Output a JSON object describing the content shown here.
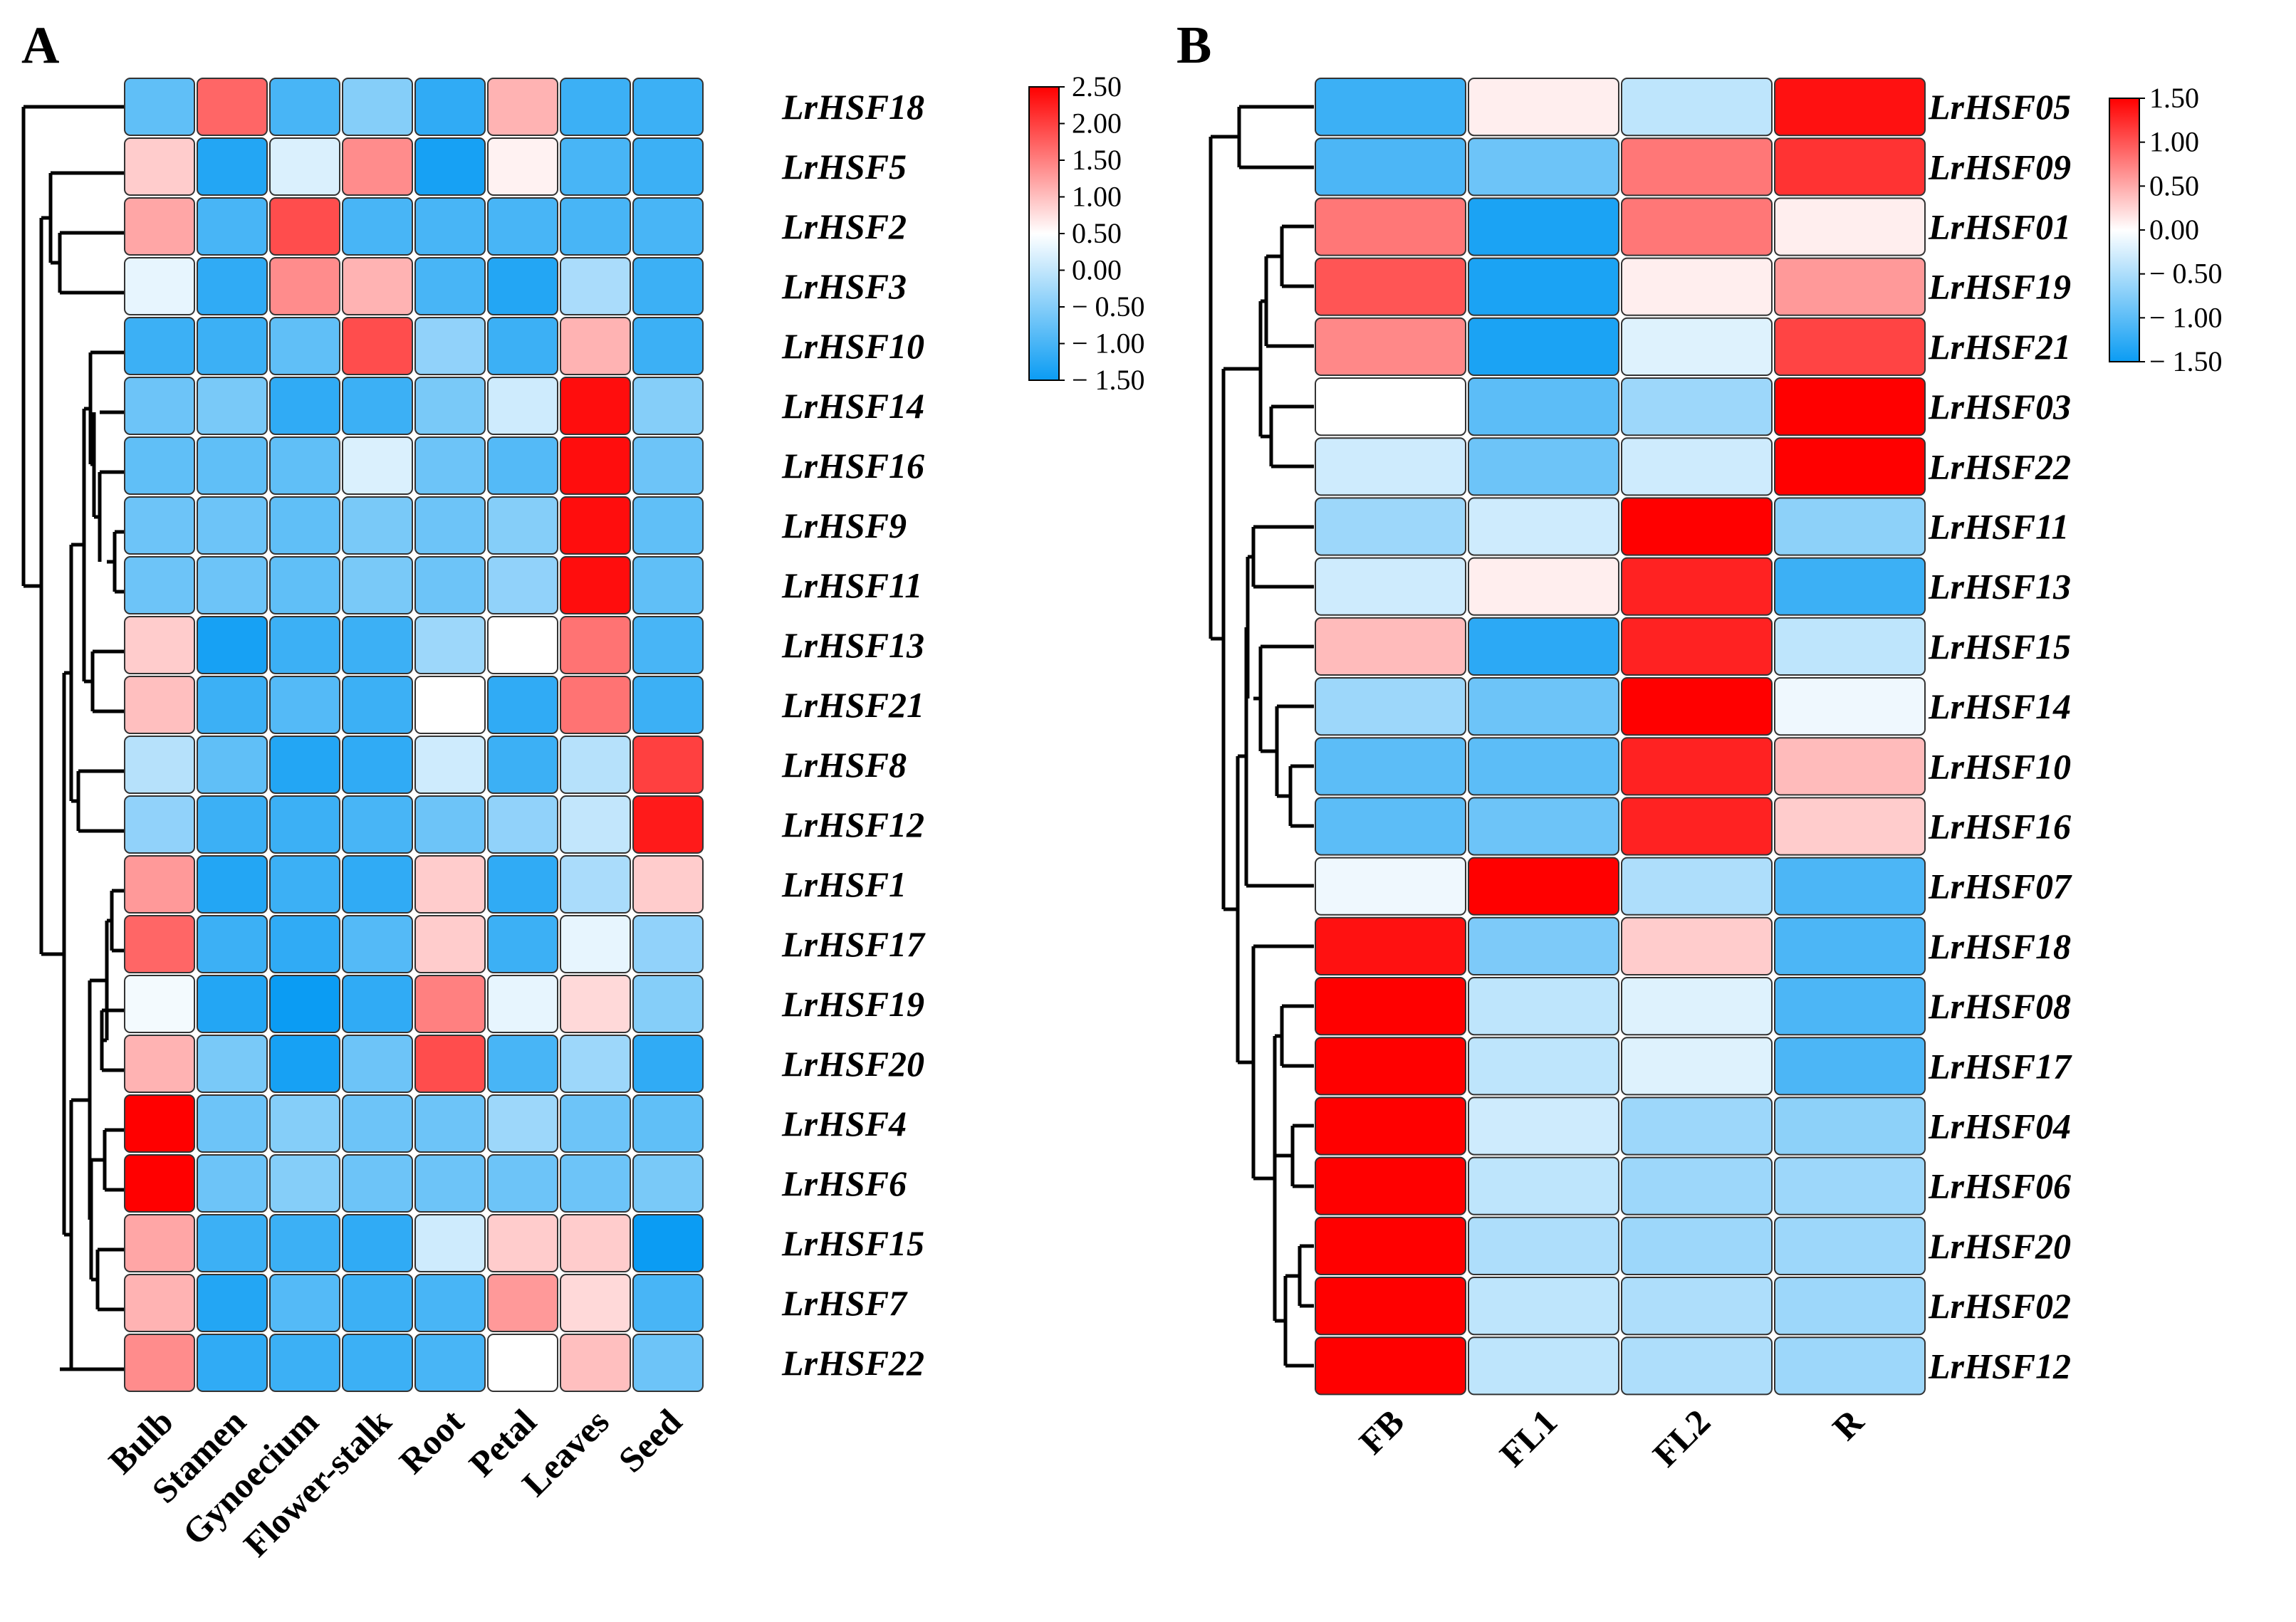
{
  "chart_data": [
    {
      "type": "heatmap",
      "panel": "A",
      "columns": [
        "Bulb",
        "Stamen",
        "Gynoecium",
        "Flower-stalk",
        "Root",
        "Petal",
        "Leaves",
        "Seed"
      ],
      "rows": [
        "LrHSF18",
        "LrHSF5",
        "LrHSF2",
        "LrHSF3",
        "LrHSF10",
        "LrHSF14",
        "LrHSF16",
        "LrHSF9",
        "LrHSF11",
        "LrHSF13",
        "LrHSF21",
        "LrHSF8",
        "LrHSF12",
        "LrHSF1",
        "LrHSF17",
        "LrHSF19",
        "LrHSF20",
        "LrHSF4",
        "LrHSF6",
        "LrHSF15",
        "LrHSF7",
        "LrHSF22"
      ],
      "values": [
        [
          -0.8,
          1.7,
          -1.0,
          -0.5,
          -1.2,
          1.1,
          -1.1,
          -1.1
        ],
        [
          0.9,
          -1.3,
          0.2,
          1.4,
          -1.4,
          0.6,
          -1.0,
          -1.1
        ],
        [
          1.2,
          -1.0,
          1.9,
          -1.0,
          -1.0,
          -1.0,
          -1.0,
          -1.0
        ],
        [
          0.3,
          -1.2,
          1.4,
          1.1,
          -1.0,
          -1.3,
          -0.2,
          -1.1
        ],
        [
          -1.1,
          -1.1,
          -0.8,
          1.9,
          -0.4,
          -1.1,
          1.1,
          -1.1
        ],
        [
          -0.7,
          -0.6,
          -1.2,
          -1.1,
          -0.6,
          0.1,
          2.4,
          -0.5
        ],
        [
          -0.8,
          -0.8,
          -0.8,
          0.2,
          -0.7,
          -0.9,
          2.4,
          -0.7
        ],
        [
          -0.7,
          -0.7,
          -0.8,
          -0.6,
          -0.7,
          -0.5,
          2.4,
          -0.8
        ],
        [
          -0.7,
          -0.7,
          -0.8,
          -0.6,
          -0.7,
          -0.4,
          2.4,
          -0.8
        ],
        [
          0.9,
          -1.4,
          -1.1,
          -1.1,
          -0.3,
          0.5,
          1.6,
          -1.0
        ],
        [
          1.0,
          -1.1,
          -0.9,
          -1.1,
          0.5,
          -1.2,
          1.6,
          -1.1
        ],
        [
          -0.1,
          -0.8,
          -1.3,
          -1.2,
          0.1,
          -1.1,
          -0.1,
          2.0
        ],
        [
          -0.4,
          -1.1,
          -1.1,
          -1.0,
          -0.7,
          -0.4,
          0.0,
          2.3
        ],
        [
          1.3,
          -1.3,
          -1.1,
          -1.2,
          0.9,
          -1.2,
          -0.2,
          0.9
        ],
        [
          1.7,
          -1.1,
          -1.2,
          -0.9,
          0.9,
          -1.1,
          0.3,
          -0.4
        ],
        [
          0.4,
          -1.3,
          -1.5,
          -1.2,
          1.5,
          0.3,
          0.8,
          -0.5
        ],
        [
          1.1,
          -0.6,
          -1.4,
          -0.7,
          1.9,
          -1.0,
          -0.3,
          -1.2
        ],
        [
          2.5,
          -0.7,
          -0.5,
          -0.7,
          -0.7,
          -0.3,
          -0.7,
          -0.8
        ],
        [
          2.5,
          -0.7,
          -0.5,
          -0.7,
          -0.7,
          -0.7,
          -0.7,
          -0.6
        ],
        [
          1.2,
          -1.1,
          -1.1,
          -1.2,
          0.1,
          0.9,
          0.9,
          -1.5
        ],
        [
          1.1,
          -1.3,
          -0.9,
          -1.1,
          -1.0,
          1.3,
          0.8,
          -1.0
        ],
        [
          1.4,
          -1.2,
          -1.1,
          -1.1,
          -1.0,
          0.5,
          1.0,
          -0.7
        ]
      ],
      "colorbar": {
        "ticks": [
          "2.50",
          "2.00",
          "1.50",
          "1.00",
          "0.50",
          "0.00",
          "− 0.50",
          "− 1.00",
          "− 1.50"
        ],
        "min": -1.5,
        "max": 2.5,
        "mid": 0.5
      },
      "colors": {
        "low": "#0b9cf3",
        "mid": "#ffffff",
        "high": "#ff0000"
      }
    },
    {
      "type": "heatmap",
      "panel": "B",
      "columns": [
        "FB",
        "FL1",
        "FL2",
        "R"
      ],
      "rows": [
        "LrHSF05",
        "LrHSF09",
        "LrHSF01",
        "LrHSF19",
        "LrHSF21",
        "LrHSF03",
        "LrHSF22",
        "LrHSF11",
        "LrHSF13",
        "LrHSF15",
        "LrHSF14",
        "LrHSF10",
        "LrHSF16",
        "LrHSF07",
        "LrHSF18",
        "LrHSF08",
        "LrHSF17",
        "LrHSF04",
        "LrHSF06",
        "LrHSF20",
        "LrHSF02",
        "LrHSF12"
      ],
      "values": [
        [
          -1.2,
          0.1,
          -0.4,
          1.4
        ],
        [
          -1.1,
          -0.9,
          0.8,
          1.2
        ],
        [
          0.8,
          -1.4,
          0.8,
          0.1
        ],
        [
          1.0,
          -1.4,
          0.1,
          0.6
        ],
        [
          0.7,
          -1.4,
          -0.2,
          1.1
        ],
        [
          0.0,
          -1.0,
          -0.6,
          1.5
        ],
        [
          -0.3,
          -0.9,
          -0.3,
          1.5
        ],
        [
          -0.6,
          -0.3,
          1.5,
          -0.7
        ],
        [
          -0.3,
          0.1,
          1.3,
          -1.2
        ],
        [
          0.4,
          -1.3,
          1.3,
          -0.4
        ],
        [
          -0.6,
          -0.9,
          1.5,
          -0.1
        ],
        [
          -1.0,
          -1.0,
          1.3,
          0.4
        ],
        [
          -1.0,
          -0.9,
          1.3,
          0.3
        ],
        [
          -0.1,
          1.5,
          -0.5,
          -1.1
        ],
        [
          1.4,
          -0.8,
          0.3,
          -1.1
        ],
        [
          1.5,
          -0.4,
          -0.2,
          -1.1
        ],
        [
          1.5,
          -0.4,
          -0.2,
          -1.1
        ],
        [
          1.5,
          -0.3,
          -0.6,
          -0.7
        ],
        [
          1.5,
          -0.4,
          -0.6,
          -0.6
        ],
        [
          1.5,
          -0.5,
          -0.6,
          -0.6
        ],
        [
          1.5,
          -0.4,
          -0.5,
          -0.6
        ],
        [
          1.5,
          -0.4,
          -0.5,
          -0.6
        ]
      ],
      "colorbar": {
        "ticks": [
          "1.50",
          "1.00",
          "0.50",
          "0.00",
          "− 0.50",
          "− 1.00",
          "− 1.50"
        ],
        "min": -1.5,
        "max": 1.5,
        "mid": 0.0
      },
      "colors": {
        "low": "#0b9cf3",
        "mid": "#ffffff",
        "high": "#ff0000"
      }
    }
  ]
}
